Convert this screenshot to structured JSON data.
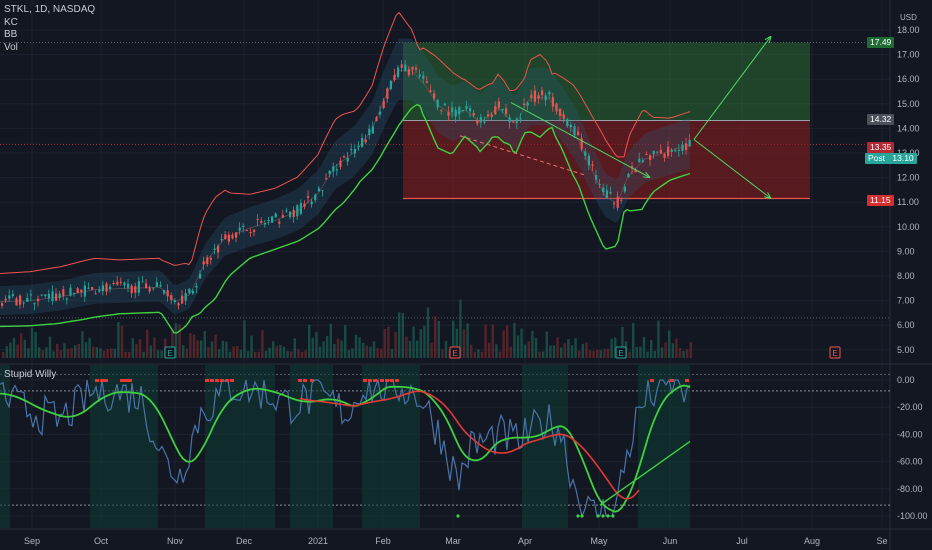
{
  "legend": {
    "symbol_line": "STKL, 1D, NASDAQ",
    "ind1": "KC",
    "ind2": "BB",
    "ind3": "Vol"
  },
  "sub_pane_title": "Stupid Willy",
  "currency": "USD",
  "price_tags": {
    "upper": "17.49",
    "mid": "14.32",
    "last": "13.35",
    "post_label": "Post",
    "post_value": "13.10",
    "lower": "11.15"
  },
  "colors": {
    "background": "#131722",
    "green": "#26a69a",
    "red": "#ef5350",
    "bright_green": "#3fd13f",
    "willy_blue": "#4a74a8",
    "signal_red": "#e53935",
    "target_green": "#2e7d32",
    "stop_red": "#8e1d1d",
    "arrow": "#4cd964"
  },
  "chart_data": [
    {
      "type": "candlestick",
      "title": "STKL, 1D, NASDAQ",
      "indicators": [
        "KC",
        "BB",
        "Vol"
      ],
      "x_tick_labels": [
        "Sep",
        "Oct",
        "Nov",
        "Dec",
        "2021",
        "Feb",
        "Mar",
        "Apr",
        "May",
        "Jun",
        "Jul",
        "Aug",
        "Se"
      ],
      "y_tick_labels": [
        "18.00",
        "17.00",
        "16.00",
        "15.00",
        "14.00",
        "13.00",
        "12.00",
        "11.00",
        "10.00",
        "9.00",
        "8.00",
        "7.00",
        "6.00",
        "5.00"
      ],
      "ylim": [
        4.7,
        18.3
      ],
      "earnings_markers": [
        {
          "date": "Nov",
          "label": "E"
        },
        {
          "date": "Mar",
          "label": "E"
        },
        {
          "date": "May",
          "label": "E"
        },
        {
          "date": "Aug",
          "label": "E"
        }
      ],
      "monthly_closes": [
        {
          "x": "Sep",
          "value": 7.0
        },
        {
          "x": "Oct",
          "value": 7.5
        },
        {
          "x": "Nov",
          "value": 7.2
        },
        {
          "x": "Dec",
          "value": 10.2
        },
        {
          "x": "2021",
          "value": 11.0
        },
        {
          "x": "Feb",
          "value": 16.2
        },
        {
          "x": "Mar",
          "value": 14.7
        },
        {
          "x": "Apr",
          "value": 14.6
        },
        {
          "x": "May",
          "value": 11.3
        },
        {
          "x": "Jun",
          "value": 13.35
        }
      ],
      "risk_reward": {
        "entry": 14.32,
        "target": 17.49,
        "stop": 11.15
      },
      "last_price": 13.35,
      "post_market": 13.1
    },
    {
      "type": "line",
      "title": "Stupid Willy",
      "y_tick_labels": [
        "0.00",
        "-20.00",
        "-40.00",
        "-60.00",
        "-80.00",
        "-100.00"
      ],
      "ylim": [
        -104,
        4
      ]
    }
  ]
}
